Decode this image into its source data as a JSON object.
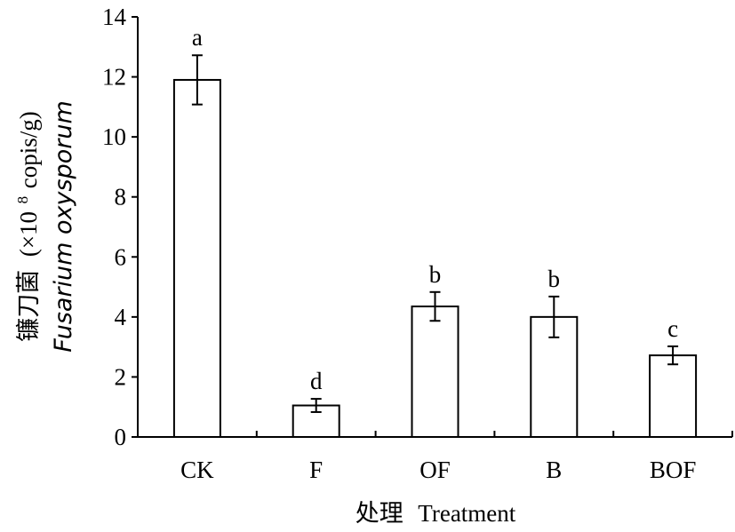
{
  "chart_data": {
    "type": "bar",
    "categories": [
      "CK",
      "F",
      "OF",
      "B",
      "BOF"
    ],
    "values": [
      11.9,
      1.05,
      4.35,
      4.0,
      2.72
    ],
    "errors": [
      0.82,
      0.22,
      0.48,
      0.68,
      0.3
    ],
    "significance": [
      "a",
      "d",
      "b",
      "b",
      "c"
    ],
    "ylim": [
      0,
      14
    ],
    "yticks": [
      0,
      2,
      4,
      6,
      8,
      10,
      12,
      14
    ],
    "xlabel": {
      "cn": "处理",
      "en": "Treatment"
    },
    "ylabel": {
      "line1_cn": "镰刀菌",
      "line1_unit_pre": "(×10",
      "line1_unit_sup": "8",
      "line1_unit_post": " copis/g)",
      "line2": "Fusarium oxysporum"
    },
    "grid": false,
    "legend": "none",
    "bar_fill": "#ffffff",
    "bar_stroke": "#000000"
  }
}
